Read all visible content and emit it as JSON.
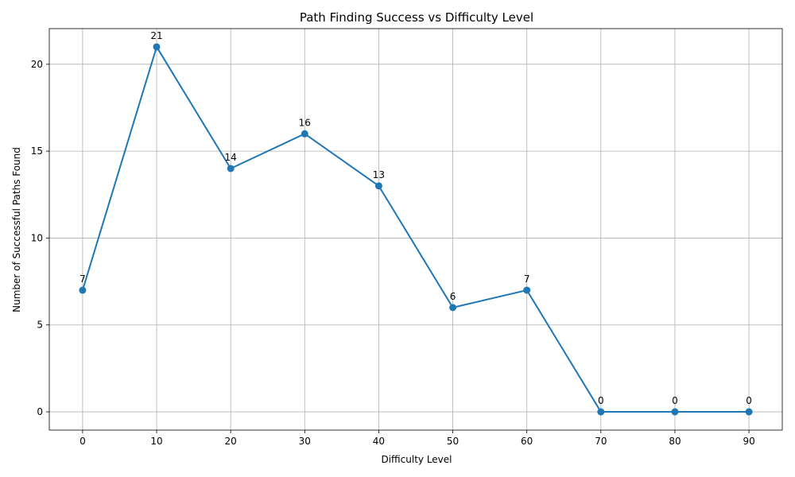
{
  "chart_data": {
    "type": "line",
    "title": "Path Finding Success vs Difficulty Level",
    "xlabel": "Difficulty Level",
    "ylabel": "Number of Successful Paths Found",
    "x": [
      0,
      10,
      20,
      30,
      40,
      50,
      60,
      70,
      80,
      90
    ],
    "series": [
      {
        "values": [
          7,
          21,
          14,
          16,
          13,
          6,
          7,
          0,
          0,
          0
        ],
        "color": "#1f77b4"
      }
    ],
    "data_labels": [
      "7",
      "21",
      "14",
      "16",
      "13",
      "6",
      "7",
      "0",
      "0",
      "0"
    ],
    "xticks": [
      0,
      10,
      20,
      30,
      40,
      50,
      60,
      70,
      80,
      90
    ],
    "xtick_labels": [
      "0",
      "10",
      "20",
      "30",
      "40",
      "50",
      "60",
      "70",
      "80",
      "90"
    ],
    "yticks": [
      0,
      5,
      10,
      15,
      20
    ],
    "ytick_labels": [
      "0",
      "5",
      "10",
      "15",
      "20"
    ],
    "xlim": [
      -4.5,
      94.5
    ],
    "ylim": [
      -1.05,
      22.05
    ],
    "grid": true,
    "markers": "circle"
  }
}
